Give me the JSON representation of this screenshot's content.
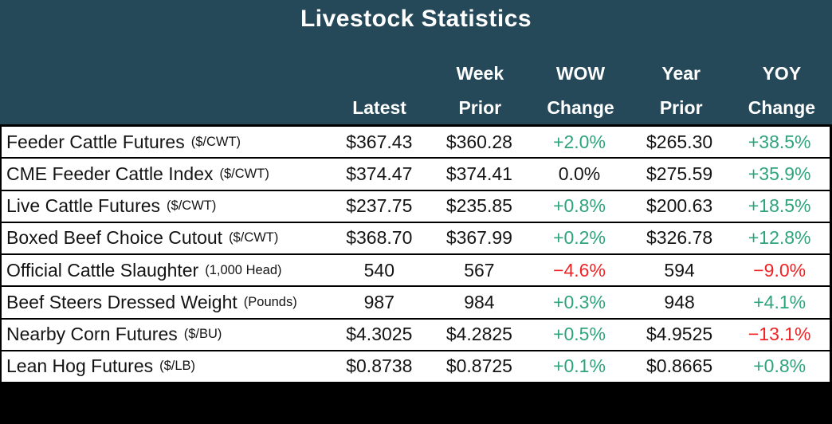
{
  "title": "Livestock Statistics",
  "colors": {
    "header_bg": "#26495a",
    "row_bg": "#ffffff",
    "border": "#000000",
    "text": "#141414",
    "positive": "#2ea47b",
    "negative": "#ee2426",
    "footer_bg": "#000000"
  },
  "table": {
    "columns": [
      {
        "line1": "",
        "line2": "Latest"
      },
      {
        "line1": "Week",
        "line2": "Prior"
      },
      {
        "line1": "WOW",
        "line2": "Change"
      },
      {
        "line1": "Year",
        "line2": "Prior"
      },
      {
        "line1": "YOY",
        "line2": "Change"
      }
    ],
    "rows": [
      {
        "label": "Feeder Cattle Futures",
        "unit": "($/CWT)",
        "latest": "$367.43",
        "week_prior": "$360.28",
        "wow_change": "+2.0%",
        "wow_dir": "up",
        "year_prior": "$265.30",
        "yoy_change": "+38.5%",
        "yoy_dir": "up"
      },
      {
        "label": "CME Feeder Cattle Index",
        "unit": "($/CWT)",
        "latest": "$374.47",
        "week_prior": "$374.41",
        "wow_change": "0.0%",
        "wow_dir": "flat",
        "year_prior": "$275.59",
        "yoy_change": "+35.9%",
        "yoy_dir": "up"
      },
      {
        "label": "Live Cattle Futures",
        "unit": "($/CWT)",
        "latest": "$237.75",
        "week_prior": "$235.85",
        "wow_change": "+0.8%",
        "wow_dir": "up",
        "year_prior": "$200.63",
        "yoy_change": "+18.5%",
        "yoy_dir": "up"
      },
      {
        "label": "Boxed Beef Choice Cutout",
        "unit": "($/CWT)",
        "latest": "$368.70",
        "week_prior": "$367.99",
        "wow_change": "+0.2%",
        "wow_dir": "up",
        "year_prior": "$326.78",
        "yoy_change": "+12.8%",
        "yoy_dir": "up"
      },
      {
        "label": "Official Cattle Slaughter",
        "unit": "(1,000 Head)",
        "latest": "540",
        "week_prior": "567",
        "wow_change": "−4.6%",
        "wow_dir": "down",
        "year_prior": "594",
        "yoy_change": "−9.0%",
        "yoy_dir": "down"
      },
      {
        "label": "Beef Steers Dressed Weight",
        "unit": "(Pounds)",
        "latest": "987",
        "week_prior": "984",
        "wow_change": "+0.3%",
        "wow_dir": "up",
        "year_prior": "948",
        "yoy_change": "+4.1%",
        "yoy_dir": "up"
      },
      {
        "label": "Nearby Corn Futures",
        "unit": "($/BU)",
        "latest": "$4.3025",
        "week_prior": "$4.2825",
        "wow_change": "+0.5%",
        "wow_dir": "up",
        "year_prior": "$4.9525",
        "yoy_change": "−13.1%",
        "yoy_dir": "down"
      },
      {
        "label": "Lean Hog Futures",
        "unit": "($/LB)",
        "latest": "$0.8738",
        "week_prior": "$0.8725",
        "wow_change": "+0.1%",
        "wow_dir": "up",
        "year_prior": "$0.8665",
        "yoy_change": "+0.8%",
        "yoy_dir": "up"
      }
    ]
  },
  "chart_data": {
    "type": "table",
    "title": "Livestock Statistics",
    "columns": [
      "",
      "Latest",
      "Week Prior",
      "WOW Change",
      "Year Prior",
      "YOY Change"
    ],
    "rows": [
      [
        "Feeder Cattle Futures ($/CWT)",
        "$367.43",
        "$360.28",
        "+2.0%",
        "$265.30",
        "+38.5%"
      ],
      [
        "CME Feeder Cattle Index ($/CWT)",
        "$374.47",
        "$374.41",
        "0.0%",
        "$275.59",
        "+35.9%"
      ],
      [
        "Live Cattle Futures ($/CWT)",
        "$237.75",
        "$235.85",
        "+0.8%",
        "$200.63",
        "+18.5%"
      ],
      [
        "Boxed Beef Choice Cutout ($/CWT)",
        "$368.70",
        "$367.99",
        "+0.2%",
        "$326.78",
        "+12.8%"
      ],
      [
        "Official Cattle Slaughter (1,000 Head)",
        "540",
        "567",
        "−4.6%",
        "594",
        "−9.0%"
      ],
      [
        "Beef Steers Dressed Weight (Pounds)",
        "987",
        "984",
        "+0.3%",
        "948",
        "+4.1%"
      ],
      [
        "Nearby Corn Futures ($/BU)",
        "$4.3025",
        "$4.2825",
        "+0.5%",
        "$4.9525",
        "−13.1%"
      ],
      [
        "Lean Hog Futures ($/LB)",
        "$0.8738",
        "$0.8725",
        "+0.1%",
        "$0.8665",
        "+0.8%"
      ]
    ],
    "legend_position": "none",
    "notes": "Positive changes rendered green (#2ea47b), negative red (#ee2426), zero black."
  }
}
